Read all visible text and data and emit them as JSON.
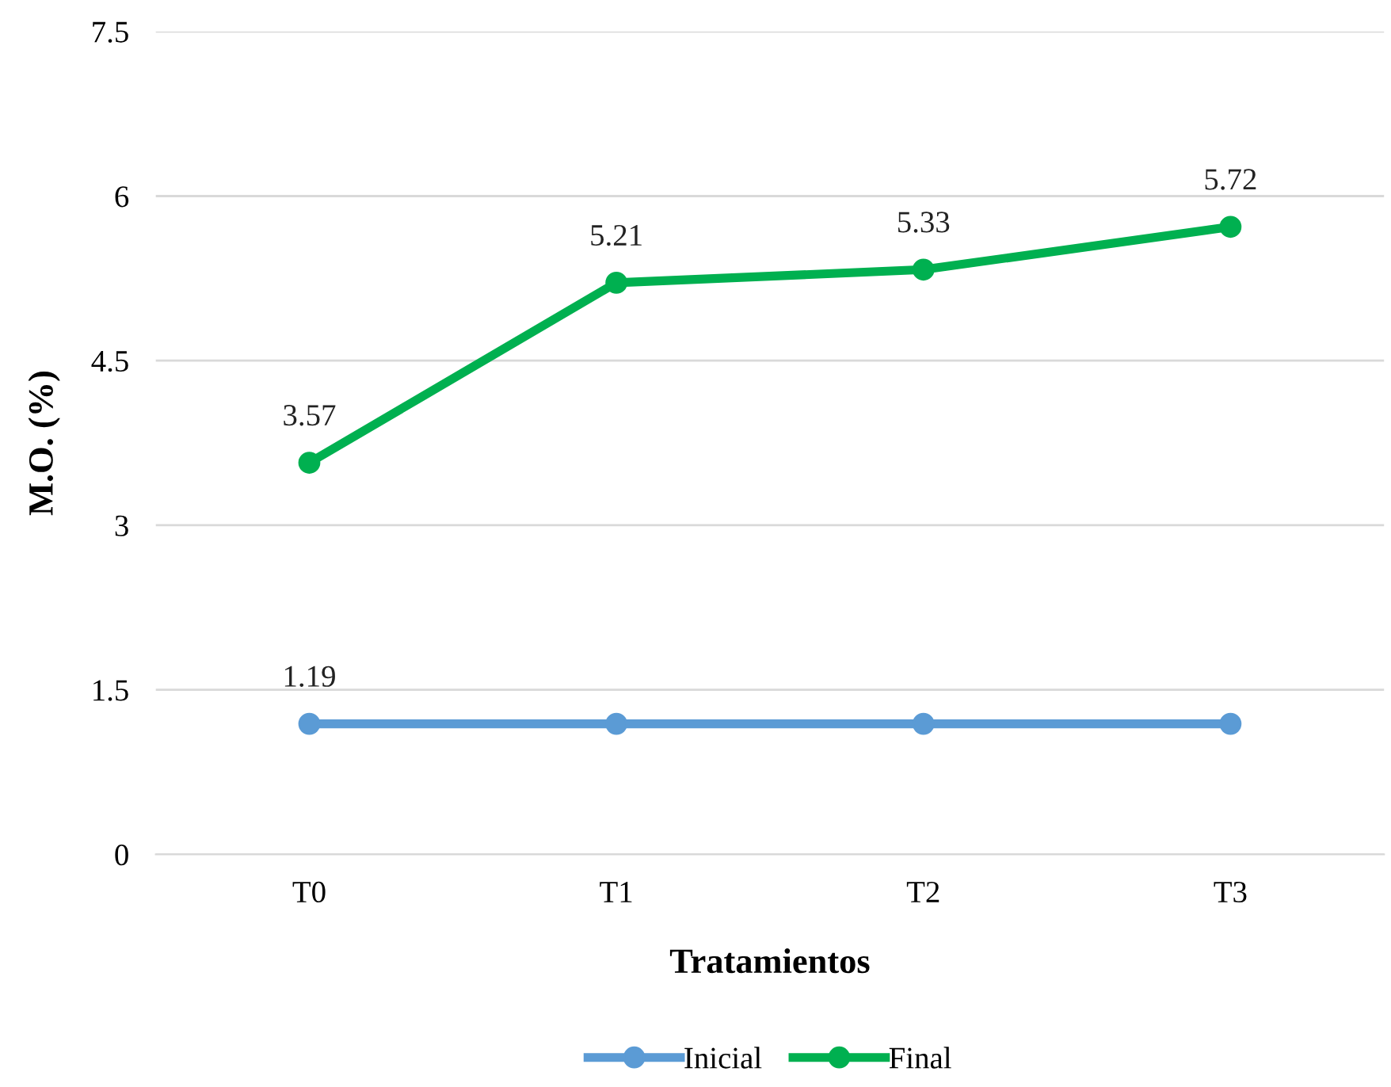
{
  "chart_data": {
    "type": "line",
    "xlabel": "Tratamientos",
    "ylabel": "M.O. (%)",
    "categories": [
      "T0",
      "T1",
      "T2",
      "T3"
    ],
    "series": [
      {
        "name": "Inicial",
        "color": "#5b9bd5",
        "values": [
          1.19,
          1.19,
          1.19,
          1.19
        ],
        "value_labels": [
          "1.19",
          null,
          null,
          null
        ]
      },
      {
        "name": "Final",
        "color": "#00b050",
        "values": [
          3.57,
          5.21,
          5.33,
          5.72
        ],
        "value_labels": [
          "3.57",
          "5.21",
          "5.33",
          "5.72"
        ]
      }
    ],
    "ylim": [
      0,
      7.5
    ],
    "yticks": [
      0,
      1.5,
      3,
      4.5,
      6,
      7.5
    ],
    "grid": "y",
    "legend": "bottom",
    "marker": "circle",
    "line_style": "solid"
  }
}
